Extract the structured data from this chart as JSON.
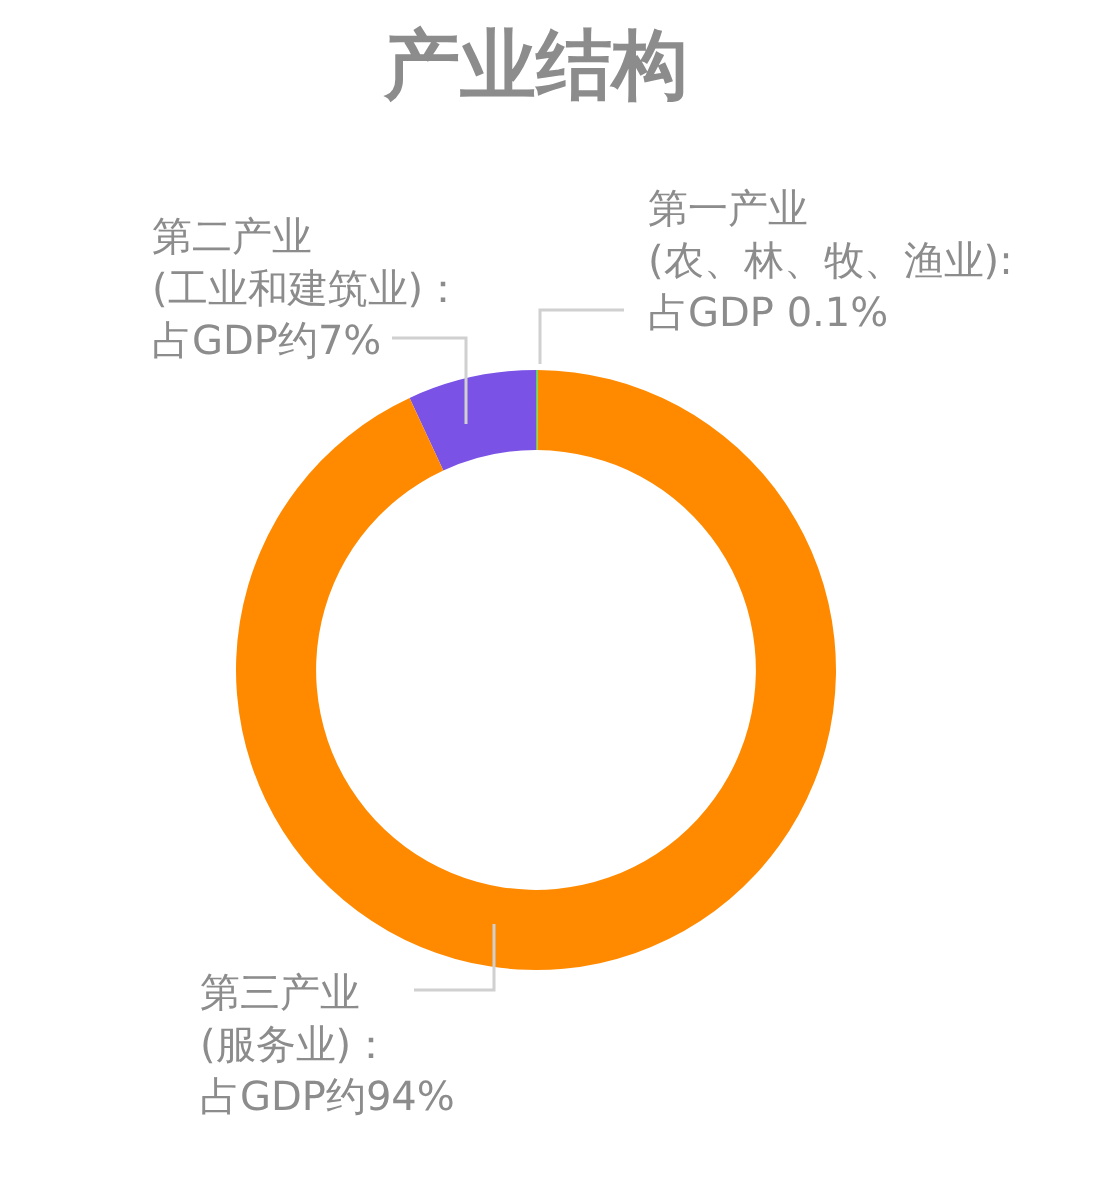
{
  "chart_data": {
    "type": "donut",
    "title": "产业结构",
    "categories": [
      "第一产业\n(农、林、牧、渔业):\n占GDP 0.1%",
      "第二产业\n(工业和建筑业)：占GDP约7%",
      "第三产业\n(服务业)：占GDP约94%"
    ],
    "values": [
      0.1,
      7,
      94
    ],
    "colors": [
      "#4cd964",
      "#7b52e6",
      "#ff8a00"
    ]
  }
}
